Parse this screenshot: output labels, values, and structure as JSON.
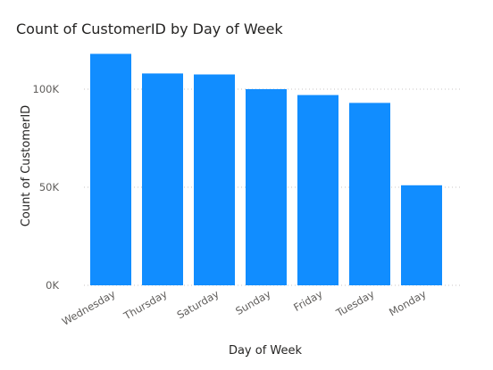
{
  "chart_data": {
    "type": "bar",
    "title": "Count of CustomerID by Day of Week",
    "xlabel": "Day of Week",
    "ylabel": "Count of CustomerID",
    "categories": [
      "Wednesday",
      "Thursday",
      "Saturday",
      "Sunday",
      "Friday",
      "Tuesday",
      "Monday"
    ],
    "values": [
      118000,
      108000,
      107500,
      100000,
      97000,
      93000,
      51000
    ],
    "ylim": [
      0,
      125000
    ],
    "yticks": [
      0,
      50000,
      100000
    ],
    "ytick_labels": [
      "0K",
      "50K",
      "100K"
    ],
    "grid": true,
    "bar_color": "#118DFF"
  }
}
